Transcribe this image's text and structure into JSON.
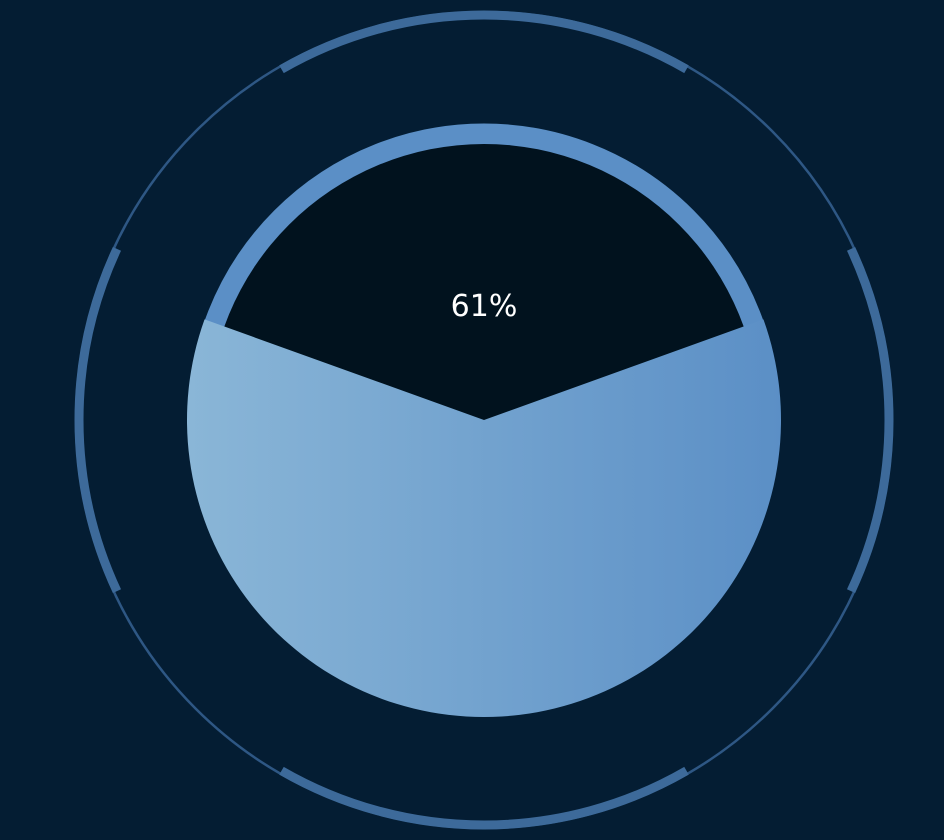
{
  "chart_data": {
    "type": "pie",
    "title": "",
    "value_percent": 61,
    "label": "61%",
    "slices": [
      {
        "name": "",
        "value": 61
      },
      {
        "name": "",
        "value": 39
      }
    ],
    "legend": "none",
    "grid": false
  },
  "colors": {
    "background": "#041d33",
    "filled_gradient_start": "#8ab6d7",
    "filled_gradient_end": "#5b8fc6",
    "empty": "#01121e",
    "ring": "#5b8fc6",
    "outer_ring": "#2e5784",
    "outer_ring_arc": "#3d6a9a"
  }
}
